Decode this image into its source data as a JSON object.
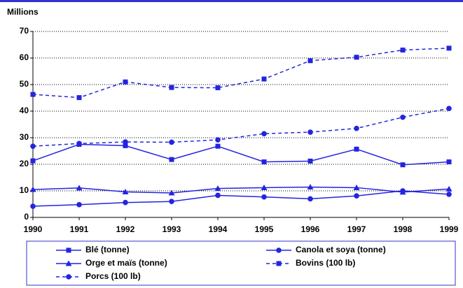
{
  "chart_data": {
    "type": "line",
    "y_label": "Millions",
    "x": [
      1990,
      1991,
      1992,
      1993,
      1994,
      1995,
      1996,
      1997,
      1998,
      1999
    ],
    "xlim": [
      1990,
      1999
    ],
    "ylim": [
      0,
      70
    ],
    "yticks": [
      0,
      10,
      20,
      30,
      40,
      50,
      60,
      70
    ],
    "grid": true,
    "series": [
      {
        "name": "Blé (tonne)",
        "color": "#2424e0",
        "marker": "square",
        "line_style": "solid",
        "values": [
          21.3,
          27.5,
          27,
          21.8,
          26.8,
          20.9,
          21.2,
          25.7,
          19.8,
          20.9
        ]
      },
      {
        "name": "Canola et soya (tonne)",
        "color": "#2424e0",
        "marker": "circle",
        "line_style": "solid",
        "values": [
          4.2,
          4.8,
          5.6,
          6.0,
          8.3,
          7.7,
          7.0,
          8.1,
          10,
          8.7
        ]
      },
      {
        "name": "Orge et maïs (tonne)",
        "color": "#2424e0",
        "marker": "triangle",
        "line_style": "solid",
        "values": [
          10.5,
          11.1,
          9.6,
          9.2,
          10.9,
          11.2,
          11.4,
          11.2,
          9.5,
          10.7
        ]
      },
      {
        "name": "Bovins (100 lb)",
        "color": "#2424e0",
        "marker": "square",
        "line_style": "dashed",
        "values": [
          46.3,
          45.1,
          51,
          48.9,
          48.8,
          52.1,
          59,
          60.3,
          63,
          63.7
        ]
      },
      {
        "name": "Porcs (100 lb)",
        "color": "#2424e0",
        "marker": "circle",
        "line_style": "dashed",
        "values": [
          26.8,
          27.8,
          28.4,
          28.3,
          29.2,
          31.5,
          32.1,
          33.5,
          37.7,
          41
        ]
      }
    ]
  }
}
